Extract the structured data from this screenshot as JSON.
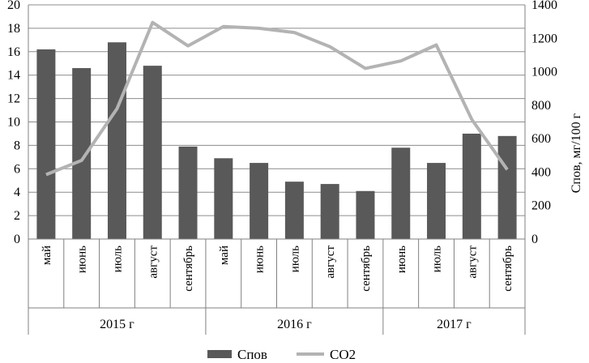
{
  "chart_data": {
    "type": "bar+line",
    "title": "",
    "years": [
      {
        "label": "2015 г",
        "count": 5
      },
      {
        "label": "2016 г",
        "count": 5
      },
      {
        "label": "2017 г",
        "count": 4
      }
    ],
    "categories": [
      "май",
      "июнь",
      "июль",
      "август",
      "сентябрь",
      "май",
      "июнь",
      "июль",
      "август",
      "сентябрь",
      "июнь",
      "июль",
      "август",
      "сентябрь"
    ],
    "series": [
      {
        "name": "Спов",
        "type": "bar",
        "axis": "left",
        "color": "#595959",
        "values": [
          16.2,
          14.6,
          16.8,
          14.8,
          7.9,
          6.9,
          6.5,
          4.9,
          4.7,
          4.1,
          7.8,
          6.5,
          9.0,
          8.8
        ]
      },
      {
        "name": "CO2",
        "type": "line",
        "axis": "right",
        "color": "#b3b3b3",
        "values": [
          385,
          470,
          780,
          1295,
          1155,
          1270,
          1260,
          1235,
          1150,
          1020,
          1065,
          1160,
          715,
          415
        ]
      }
    ],
    "y_left": {
      "min": 0,
      "max": 20,
      "step": 2,
      "ticks": [
        "0",
        "2",
        "4",
        "6",
        "8",
        "10",
        "12",
        "14",
        "16",
        "18",
        "20"
      ]
    },
    "y_right": {
      "min": 0,
      "max": 1400,
      "step": 200,
      "ticks": [
        "0",
        "200",
        "400",
        "600",
        "800",
        "1000",
        "1200",
        "1400"
      ],
      "label": "Спов, мг/100 г"
    },
    "grid": "horizontal",
    "legend": {
      "position": "bottom",
      "items": [
        "Спов",
        "CO2"
      ]
    }
  }
}
